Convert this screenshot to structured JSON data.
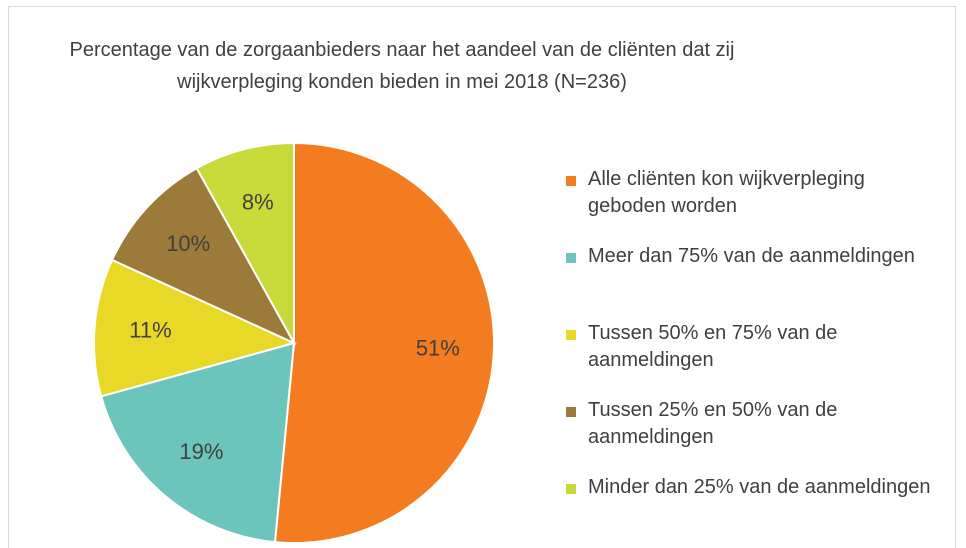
{
  "chart_data": {
    "type": "pie",
    "title": "Percentage van de zorgaanbieders naar het aandeel van de cliënten dat zij wijkverpleging konden bieden in mei 2018 (N=236)",
    "categories": [
      "Alle cliënten kon wijkverpleging geboden worden",
      "Meer dan 75% van de aanmeldingen",
      "Tussen 50% en 75% van de aanmeldingen",
      "Tussen 25% en 50% van de aanmeldingen",
      "Minder dan 25% van de aanmeldingen"
    ],
    "values": [
      51,
      19,
      11,
      10,
      8
    ],
    "value_labels": [
      "51%",
      "19%",
      "11%",
      "10%",
      "8%"
    ],
    "colors": [
      "#f47c20",
      "#6cc5bc",
      "#e8d827",
      "#9b7a3a",
      "#c8d93a"
    ],
    "legend": "right"
  }
}
